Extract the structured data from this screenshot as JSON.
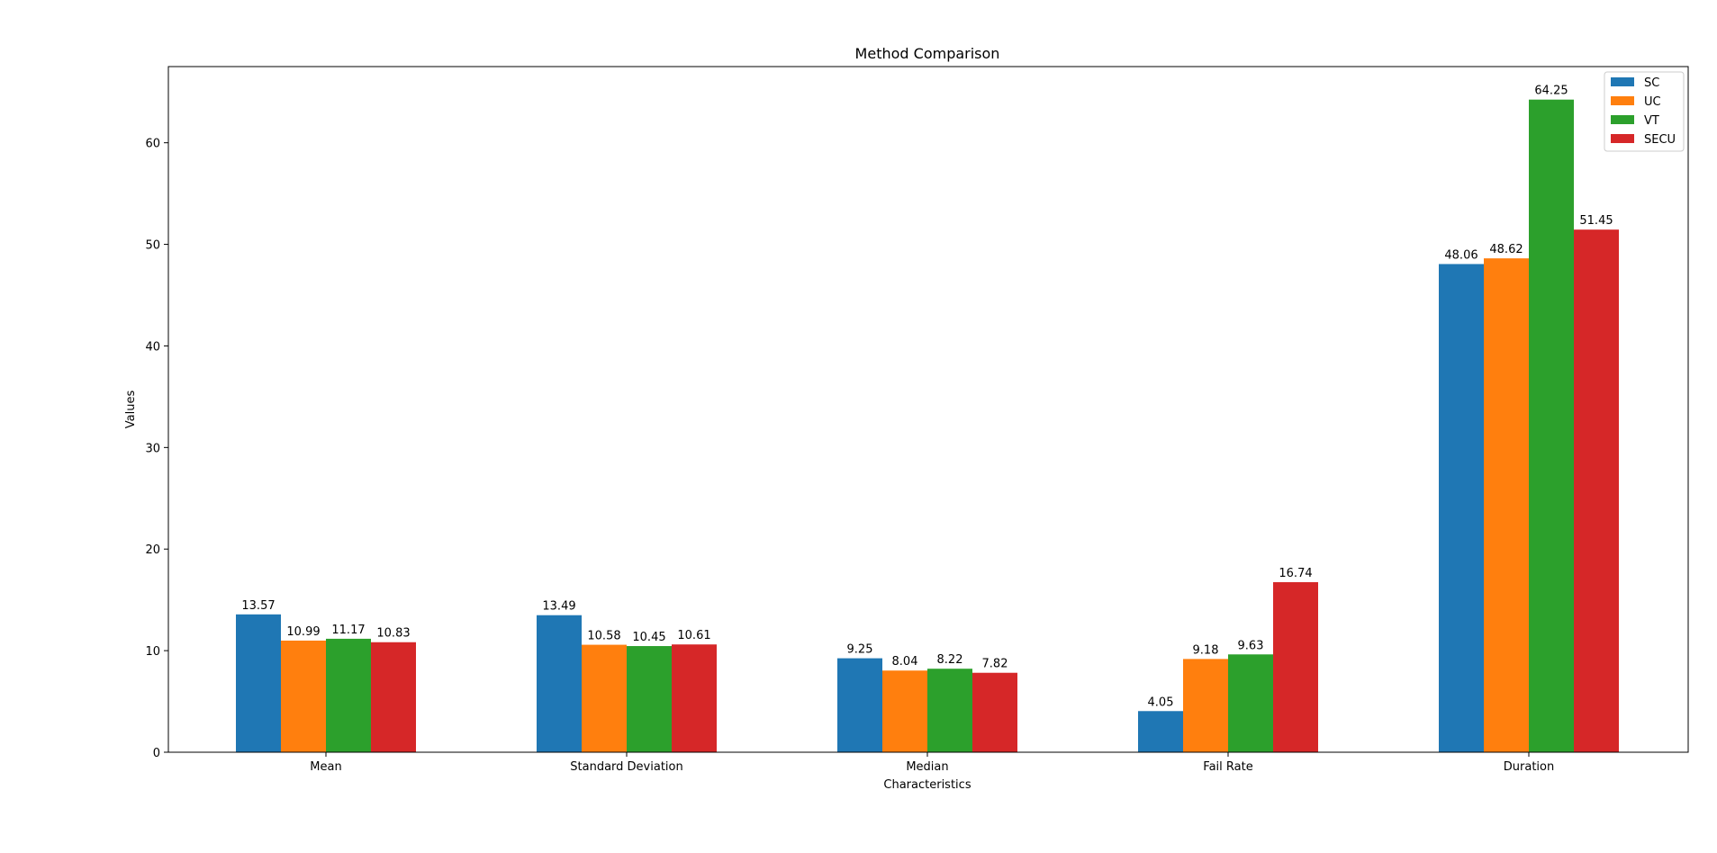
{
  "chart_data": {
    "type": "bar",
    "title": "Method Comparison",
    "xlabel": "Characteristics",
    "ylabel": "Values",
    "categories": [
      "Mean",
      "Standard Deviation",
      "Median",
      "Fail Rate",
      "Duration"
    ],
    "series": [
      {
        "name": "SC",
        "color": "#1f77b4",
        "values": [
          13.57,
          13.49,
          9.25,
          4.05,
          48.06
        ]
      },
      {
        "name": "UC",
        "color": "#ff7f0e",
        "values": [
          10.99,
          10.58,
          8.04,
          9.18,
          48.62
        ]
      },
      {
        "name": "VT",
        "color": "#2ca02c",
        "values": [
          11.17,
          10.45,
          8.22,
          9.63,
          64.25
        ]
      },
      {
        "name": "SECU",
        "color": "#d62728",
        "values": [
          10.83,
          10.61,
          7.82,
          16.74,
          51.45
        ]
      }
    ],
    "ylim": [
      0,
      67.5
    ],
    "yticks": [
      "0",
      "10",
      "20",
      "30",
      "40",
      "50",
      "60"
    ],
    "data_labels": [
      [
        "13.57",
        "13.49",
        "9.25",
        "4.05",
        "48.06"
      ],
      [
        "10.99",
        "10.58",
        "8.04",
        "9.18",
        "48.62"
      ],
      [
        "11.17",
        "10.45",
        "8.22",
        "9.63",
        "64.25"
      ],
      [
        "10.83",
        "10.61",
        "7.82",
        "16.74",
        "51.45"
      ]
    ],
    "legend_position": "top-right",
    "grid": false
  }
}
